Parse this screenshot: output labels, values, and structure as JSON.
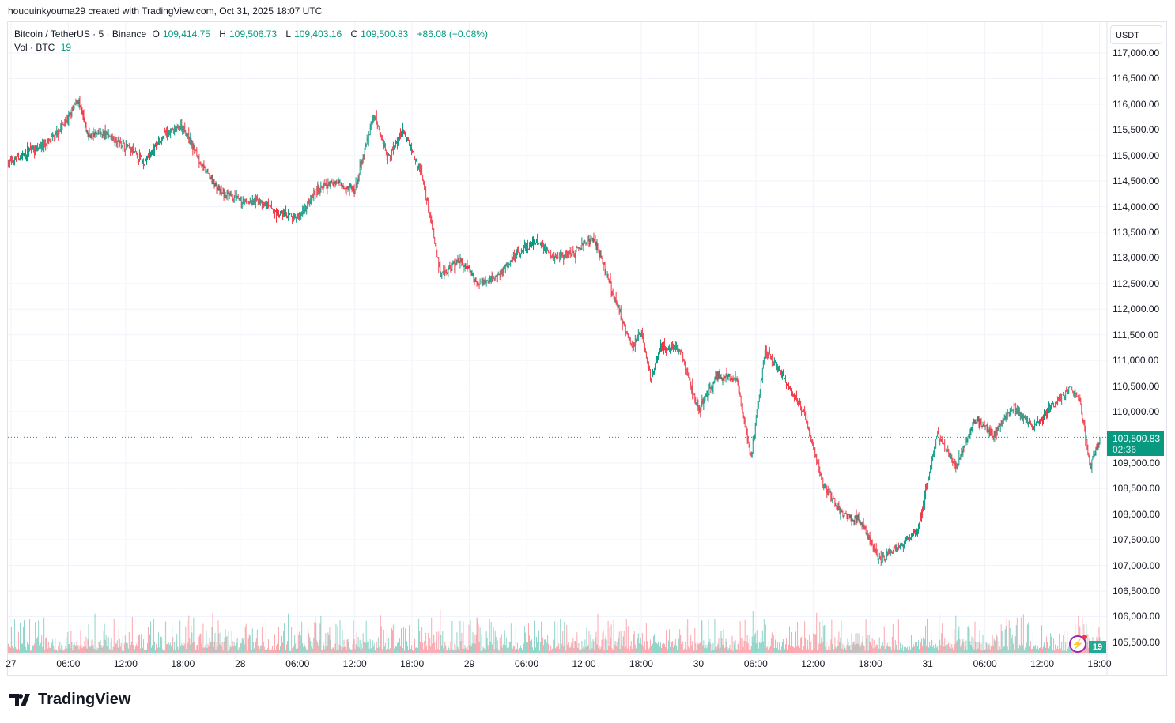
{
  "credit": "hououinkyouma29 created with TradingView.com, Oct 31, 2025 18:07 UTC",
  "legend": {
    "symbol": "Bitcoin / TetherUS · 5 · Binance",
    "open_label": "O",
    "open": "109,414.75",
    "high_label": "H",
    "high": "109,506.73",
    "low_label": "L",
    "low": "109,403.16",
    "close_label": "C",
    "close": "109,500.83",
    "change": "+86.08 (+0.08%)",
    "vol_label": "Vol · BTC",
    "vol_value": "19"
  },
  "currency": "USDT",
  "current_price": {
    "price": "109,500.83",
    "countdown": "02:36"
  },
  "volume_badge": "19",
  "logo": "TradingView",
  "colors": {
    "up": "#089981",
    "down": "#f23645",
    "grid": "#f0f3fa"
  },
  "chart_data": {
    "type": "candlestick",
    "interval": "5m",
    "y_ticks": [
      "117,000.00",
      "116,500.00",
      "116,000.00",
      "115,500.00",
      "115,000.00",
      "114,500.00",
      "114,000.00",
      "113,500.00",
      "113,000.00",
      "112,500.00",
      "112,000.00",
      "111,500.00",
      "111,000.00",
      "110,500.00",
      "110,000.00",
      "109,000.00",
      "108,500.00",
      "108,000.00",
      "107,500.00",
      "107,000.00",
      "106,500.00",
      "106,000.00",
      "105,500.00"
    ],
    "ylim": [
      105500,
      117000
    ],
    "x_ticks": [
      "27",
      "06:00",
      "12:00",
      "18:00",
      "28",
      "06:00",
      "12:00",
      "18:00",
      "29",
      "06:00",
      "12:00",
      "18:00",
      "30",
      "06:00",
      "12:00",
      "18:00",
      "31",
      "06:00",
      "12:00",
      "18:00"
    ],
    "grid": true,
    "approx_path": {
      "hours_since_oct27_0000": [
        0,
        2,
        4,
        6,
        7,
        8,
        10,
        12,
        14,
        16,
        18,
        20,
        22,
        24,
        26,
        28,
        30,
        32,
        34,
        36,
        38,
        39.5,
        41,
        42,
        43,
        44,
        45,
        47,
        49,
        51,
        53,
        55,
        57,
        59,
        61,
        63,
        65,
        66,
        67,
        68,
        70,
        72,
        74,
        76,
        77.5,
        79,
        81,
        83,
        85,
        87,
        89,
        91,
        93,
        95,
        97,
        99,
        101,
        103,
        105,
        107,
        109,
        111,
        112,
        113,
        114.1
      ],
      "price": [
        114870,
        115100,
        115260,
        115720,
        116100,
        115410,
        115410,
        115180,
        114870,
        115410,
        115570,
        114800,
        114260,
        114100,
        114100,
        113870,
        113790,
        114330,
        114490,
        114330,
        115800,
        114950,
        115490,
        115100,
        114640,
        113720,
        112640,
        112950,
        112480,
        112640,
        113100,
        113330,
        113020,
        113100,
        113410,
        112330,
        111250,
        111560,
        110630,
        111250,
        111250,
        110020,
        110710,
        110630,
        109090,
        111250,
        110630,
        110020,
        108630,
        108010,
        107860,
        107090,
        107390,
        107710,
        109550,
        108940,
        109860,
        109550,
        110090,
        109710,
        110090,
        110480,
        110170,
        108940,
        109500
      ]
    },
    "last_close": 109500.83
  }
}
